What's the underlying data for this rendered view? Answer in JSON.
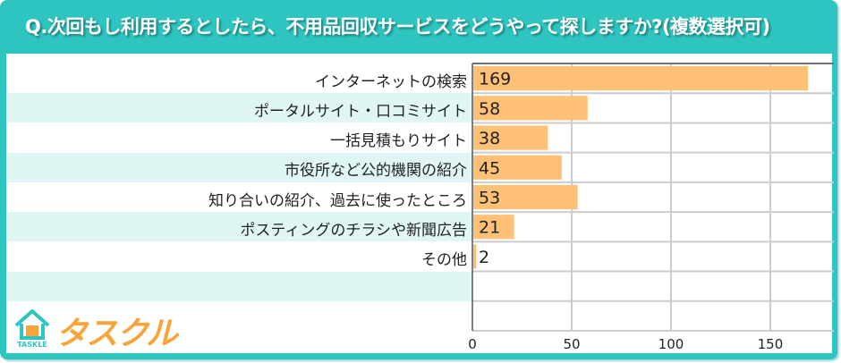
{
  "title": "Q.次回もし利用するとしたら、不用品回収サービスをどうやって探しますか?(複数選択可)",
  "logo": {
    "text": "タスクル",
    "sub": "TASKLE",
    "badge": "助"
  },
  "colors": {
    "frame": "#2ec4bf",
    "bar": "#ffbe6e",
    "stripe": "#e0f6f5",
    "logo": "#f7a43a"
  },
  "chart_data": {
    "type": "bar",
    "orientation": "horizontal",
    "categories": [
      "インターネットの検索",
      "ポータルサイト・口コミサイト",
      "一括見積もりサイト",
      "市役所など公的機関の紹介",
      "知り合いの紹介、過去に使ったところ",
      "ポスティングのチラシや新聞広告",
      "その他"
    ],
    "values": [
      169,
      58,
      38,
      45,
      53,
      21,
      2
    ],
    "xlim": [
      0,
      182
    ],
    "xticks": [
      0,
      50,
      100,
      150
    ],
    "grid": true
  }
}
